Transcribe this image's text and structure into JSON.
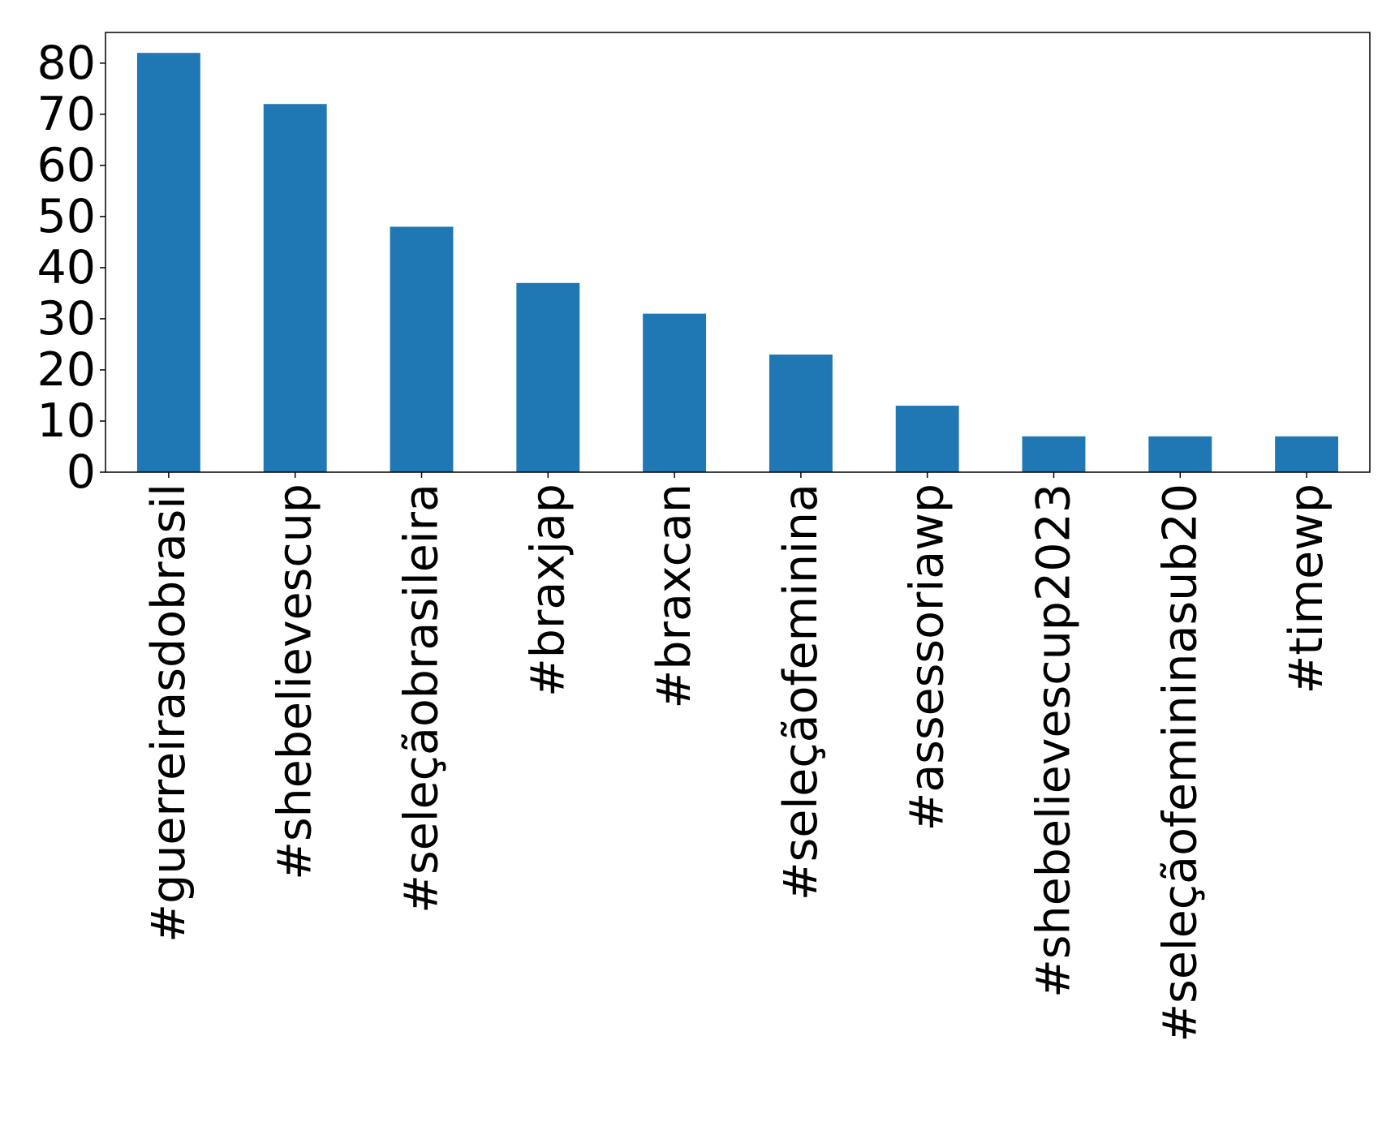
{
  "chart_data": {
    "type": "bar",
    "categories": [
      "#guerreirasdobrasil",
      "#shebelievescup",
      "#seleçãobrasileira",
      "#braxjap",
      "#braxcan",
      "#seleçãofeminina",
      "#assessoriawp",
      "#shebelievescup2023",
      "#seleçãofemininasub20",
      "#timewp"
    ],
    "values": [
      82,
      72,
      48,
      37,
      31,
      23,
      13,
      7,
      7,
      7
    ],
    "yticks": [
      "0",
      "10",
      "20",
      "30",
      "40",
      "50",
      "60",
      "70",
      "80"
    ],
    "ylim": [
      0,
      86
    ],
    "xlabel": "",
    "ylabel": "",
    "grid": false,
    "bar_color": "#1f77b4"
  }
}
